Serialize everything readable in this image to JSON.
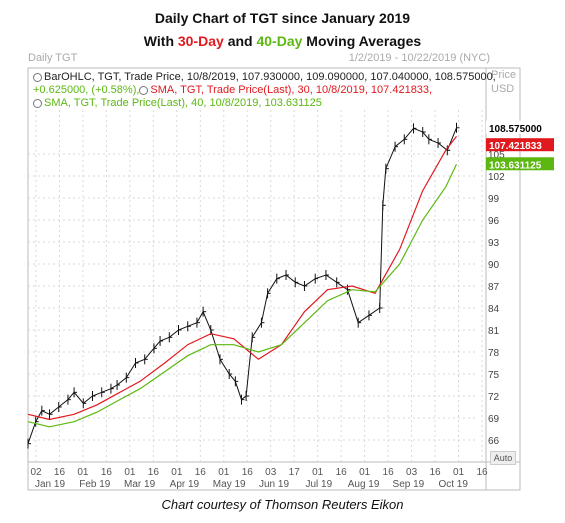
{
  "title_line1": "Daily Chart of TGT since January 2019",
  "title_line2_parts": [
    "With ",
    "30-Day",
    " and ",
    "40-Day",
    " Moving Averages"
  ],
  "header_left": "Daily TGT",
  "header_right": "1/2/2019 - 10/22/2019 (NYC)",
  "price_label": "Price",
  "usd_label": "USD",
  "legend": {
    "line1": "BarOHLC, TGT, Trade Price, 10/8/2019, 107.930000, 109.090000, 107.040000, 108.575000,",
    "line2": "+0.625000, (+0.58%),",
    "line2b": "SMA, TGT, Trade Price(Last), 30, 10/8/2019, 107.421833,",
    "line3": "SMA, TGT, Trade Price(Last), 40, 10/8/2019, 103.631125"
  },
  "credit": "Chart courtesy of Thomson Reuters Eikon",
  "auto_button": "Auto",
  "colors": {
    "price": "#111111",
    "sma30": "#e0191e",
    "sma40": "#5cb811",
    "grid": "#d8d8d8"
  },
  "chart_data": {
    "type": "line",
    "yticks": [
      66,
      69,
      72,
      75,
      78,
      81,
      84,
      87,
      90,
      93,
      96,
      99,
      102,
      105
    ],
    "ylim": [
      63,
      111
    ],
    "xticks_days": [
      "02",
      "16",
      "01",
      "16",
      "01",
      "16",
      "01",
      "16",
      "01",
      "16",
      "03",
      "17",
      "01",
      "16",
      "01",
      "16",
      "03",
      "16",
      "01",
      "16"
    ],
    "xticks_months": [
      "Jan 19",
      "Feb 19",
      "Mar 19",
      "Apr 19",
      "May 19",
      "Jun 19",
      "Jul 19",
      "Aug 19",
      "Sep 19",
      "Oct 19"
    ],
    "x_start": "2019-01-02",
    "x_end": "2019-10-22",
    "grid": true,
    "last_price_tag": "108.575000",
    "sma30_tag": "107.421833",
    "sma40_tag": "103.631125",
    "series": [
      {
        "name": "BarOHLC TGT",
        "kind": "close",
        "points": [
          [
            "2019-01-02",
            65.5
          ],
          [
            "2019-01-07",
            68.5
          ],
          [
            "2019-01-11",
            70.0
          ],
          [
            "2019-01-16",
            69.5
          ],
          [
            "2019-01-22",
            70.5
          ],
          [
            "2019-01-28",
            71.5
          ],
          [
            "2019-02-01",
            72.5
          ],
          [
            "2019-02-07",
            71.0
          ],
          [
            "2019-02-13",
            72.0
          ],
          [
            "2019-02-19",
            72.5
          ],
          [
            "2019-02-25",
            73.0
          ],
          [
            "2019-03-01",
            73.5
          ],
          [
            "2019-03-07",
            74.5
          ],
          [
            "2019-03-13",
            76.5
          ],
          [
            "2019-03-19",
            77.0
          ],
          [
            "2019-03-25",
            78.5
          ],
          [
            "2019-03-29",
            79.5
          ],
          [
            "2019-04-04",
            80.0
          ],
          [
            "2019-04-10",
            81.0
          ],
          [
            "2019-04-16",
            81.5
          ],
          [
            "2019-04-22",
            82.0
          ],
          [
            "2019-04-26",
            83.5
          ],
          [
            "2019-05-01",
            81.0
          ],
          [
            "2019-05-07",
            77.0
          ],
          [
            "2019-05-13",
            75.0
          ],
          [
            "2019-05-17",
            74.0
          ],
          [
            "2019-05-21",
            71.5
          ],
          [
            "2019-05-24",
            72.0
          ],
          [
            "2019-05-28",
            80.0
          ],
          [
            "2019-06-03",
            82.0
          ],
          [
            "2019-06-07",
            86.0
          ],
          [
            "2019-06-13",
            88.0
          ],
          [
            "2019-06-19",
            88.5
          ],
          [
            "2019-06-25",
            87.5
          ],
          [
            "2019-07-01",
            87.0
          ],
          [
            "2019-07-08",
            88.0
          ],
          [
            "2019-07-15",
            88.5
          ],
          [
            "2019-07-22",
            87.5
          ],
          [
            "2019-07-29",
            86.5
          ],
          [
            "2019-08-05",
            82.0
          ],
          [
            "2019-08-12",
            83.0
          ],
          [
            "2019-08-19",
            84.0
          ],
          [
            "2019-08-21",
            98.0
          ],
          [
            "2019-08-23",
            103.0
          ],
          [
            "2019-08-29",
            106.0
          ],
          [
            "2019-09-04",
            107.0
          ],
          [
            "2019-09-10",
            108.5
          ],
          [
            "2019-09-16",
            108.0
          ],
          [
            "2019-09-20",
            107.0
          ],
          [
            "2019-09-26",
            106.5
          ],
          [
            "2019-10-02",
            105.5
          ],
          [
            "2019-10-08",
            108.575
          ]
        ]
      },
      {
        "name": "SMA, TGT, Trade Price(Last), 30",
        "points": [
          [
            "2019-01-02",
            69.5
          ],
          [
            "2019-01-16",
            68.8
          ],
          [
            "2019-02-01",
            69.5
          ],
          [
            "2019-02-16",
            70.8
          ],
          [
            "2019-03-01",
            72.3
          ],
          [
            "2019-03-16",
            74.0
          ],
          [
            "2019-04-01",
            76.5
          ],
          [
            "2019-04-16",
            79.0
          ],
          [
            "2019-05-01",
            80.5
          ],
          [
            "2019-05-16",
            79.8
          ],
          [
            "2019-06-01",
            77.0
          ],
          [
            "2019-06-16",
            79.0
          ],
          [
            "2019-07-01",
            83.5
          ],
          [
            "2019-07-16",
            86.5
          ],
          [
            "2019-08-01",
            87.0
          ],
          [
            "2019-08-16",
            86.0
          ],
          [
            "2019-09-01",
            92.0
          ],
          [
            "2019-09-16",
            100.0
          ],
          [
            "2019-10-01",
            105.5
          ],
          [
            "2019-10-08",
            107.4
          ]
        ]
      },
      {
        "name": "SMA, TGT, Trade Price(Last), 40",
        "points": [
          [
            "2019-01-02",
            68.5
          ],
          [
            "2019-01-16",
            67.8
          ],
          [
            "2019-02-01",
            68.5
          ],
          [
            "2019-02-16",
            69.8
          ],
          [
            "2019-03-01",
            71.3
          ],
          [
            "2019-03-16",
            73.0
          ],
          [
            "2019-04-01",
            75.3
          ],
          [
            "2019-04-16",
            77.5
          ],
          [
            "2019-05-01",
            79.0
          ],
          [
            "2019-05-16",
            79.0
          ],
          [
            "2019-06-01",
            78.0
          ],
          [
            "2019-06-16",
            79.0
          ],
          [
            "2019-07-01",
            82.0
          ],
          [
            "2019-07-16",
            85.0
          ],
          [
            "2019-08-01",
            86.5
          ],
          [
            "2019-08-16",
            86.2
          ],
          [
            "2019-09-01",
            90.0
          ],
          [
            "2019-09-16",
            96.0
          ],
          [
            "2019-10-01",
            100.5
          ],
          [
            "2019-10-08",
            103.6
          ]
        ]
      }
    ]
  }
}
